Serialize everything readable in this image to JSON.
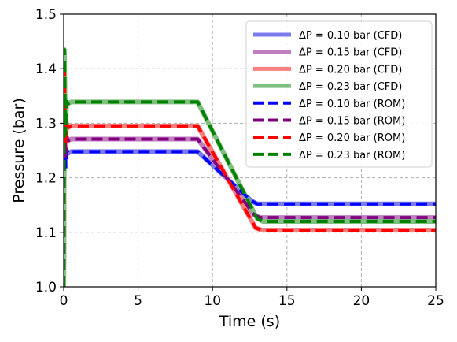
{
  "chart_data": {
    "type": "line",
    "title": "",
    "xlabel": "Time (s)",
    "ylabel": "Pressure (bar)",
    "xlim": [
      0,
      25
    ],
    "ylim": [
      1.0,
      1.5
    ],
    "xticks": [
      0,
      5,
      10,
      15,
      20,
      25
    ],
    "yticks": [
      1.0,
      1.1,
      1.2,
      1.3,
      1.4,
      1.5
    ],
    "xtick_labels": [
      "0",
      "5",
      "10",
      "15",
      "20",
      "25"
    ],
    "ytick_labels": [
      "1.0",
      "1.1",
      "1.2",
      "1.3",
      "1.4",
      "1.5"
    ],
    "grid": true,
    "legend_position": "top-right",
    "series": [
      {
        "name": "ΔP = 0.10 bar (CFD)",
        "color": "#7b7bef",
        "style": "solid",
        "x": [
          0,
          0.05,
          0.12,
          0.2,
          0.3,
          0.5,
          9.0,
          12.6,
          13.0,
          25
        ],
        "y": [
          1.0,
          1.3,
          1.22,
          1.25,
          1.245,
          1.248,
          1.248,
          1.158,
          1.152,
          1.152
        ]
      },
      {
        "name": "ΔP = 0.15 bar (CFD)",
        "color": "#bf7fbf",
        "style": "solid",
        "x": [
          0,
          0.05,
          0.12,
          0.2,
          0.3,
          0.5,
          9.0,
          12.8,
          13.2,
          25
        ],
        "y": [
          1.0,
          1.35,
          1.24,
          1.275,
          1.268,
          1.271,
          1.271,
          1.132,
          1.127,
          1.127
        ]
      },
      {
        "name": "ΔP = 0.20 bar (CFD)",
        "color": "#f87f7f",
        "style": "solid",
        "x": [
          0,
          0.05,
          0.12,
          0.2,
          0.3,
          0.5,
          9.0,
          12.9,
          13.3,
          25
        ],
        "y": [
          1.0,
          1.4,
          1.26,
          1.3,
          1.292,
          1.295,
          1.295,
          1.108,
          1.104,
          1.104
        ]
      },
      {
        "name": "ΔP = 0.23 bar (CFD)",
        "color": "#7fbf7f",
        "style": "solid",
        "x": [
          0,
          0.05,
          0.12,
          0.2,
          0.3,
          0.5,
          9.0,
          13.0,
          13.4,
          25
        ],
        "y": [
          1.0,
          1.435,
          1.28,
          1.34,
          1.336,
          1.339,
          1.339,
          1.125,
          1.12,
          1.12
        ]
      },
      {
        "name": "ΔP = 0.10 bar (ROM)",
        "color": "#0000ff",
        "style": "dashed",
        "x": [
          0,
          0.05,
          0.12,
          0.2,
          0.3,
          0.5,
          9.0,
          12.6,
          13.0,
          25
        ],
        "y": [
          1.0,
          1.3,
          1.22,
          1.25,
          1.245,
          1.248,
          1.248,
          1.158,
          1.152,
          1.152
        ]
      },
      {
        "name": "ΔP = 0.15 bar (ROM)",
        "color": "#800080",
        "style": "dashed",
        "x": [
          0,
          0.05,
          0.12,
          0.2,
          0.3,
          0.5,
          9.0,
          12.8,
          13.2,
          25
        ],
        "y": [
          1.0,
          1.35,
          1.24,
          1.275,
          1.268,
          1.271,
          1.271,
          1.132,
          1.127,
          1.127
        ]
      },
      {
        "name": "ΔP = 0.20 bar (ROM)",
        "color": "#ff0000",
        "style": "dashed",
        "x": [
          0,
          0.05,
          0.12,
          0.2,
          0.3,
          0.5,
          9.0,
          12.9,
          13.3,
          25
        ],
        "y": [
          1.0,
          1.4,
          1.26,
          1.3,
          1.292,
          1.295,
          1.295,
          1.108,
          1.104,
          1.104
        ]
      },
      {
        "name": "ΔP = 0.23 bar (ROM)",
        "color": "#008000",
        "style": "dashed",
        "x": [
          0,
          0.05,
          0.12,
          0.2,
          0.3,
          0.5,
          9.0,
          13.0,
          13.4,
          25
        ],
        "y": [
          1.0,
          1.435,
          1.28,
          1.34,
          1.336,
          1.339,
          1.339,
          1.125,
          1.12,
          1.12
        ]
      }
    ]
  }
}
